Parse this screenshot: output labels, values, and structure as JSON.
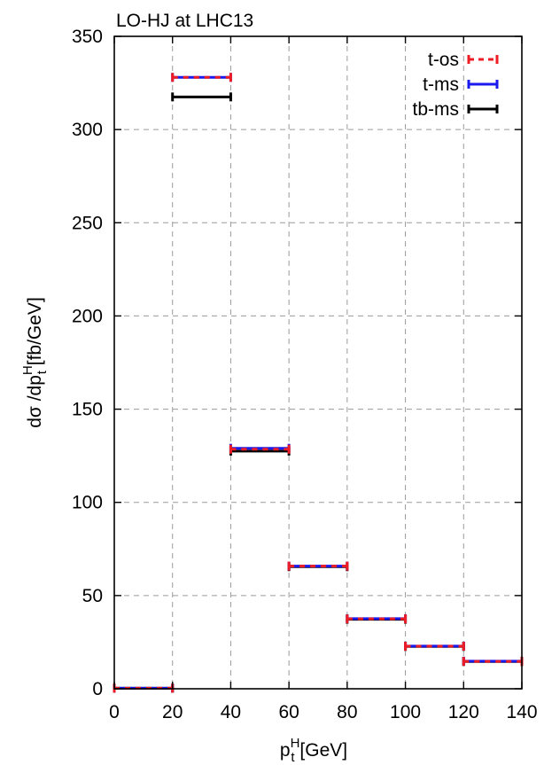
{
  "chart_data": {
    "type": "line",
    "title": "LO-HJ at LHC13",
    "xlabel": {
      "base": "p",
      "sub": "t",
      "sup": "H",
      "unit": " [GeV]"
    },
    "ylabel": {
      "prefix": "dσ /dp",
      "sub": "t",
      "sup": "H",
      "unit": " [fb/GeV]"
    },
    "xlim": [
      0,
      140
    ],
    "ylim": [
      0,
      350
    ],
    "xticks": [
      0,
      20,
      40,
      60,
      80,
      100,
      120,
      140
    ],
    "yticks": [
      0,
      50,
      100,
      150,
      200,
      250,
      300,
      350
    ],
    "grid": true,
    "legend_position": "top-right",
    "bins": [
      [
        0,
        20
      ],
      [
        20,
        40
      ],
      [
        40,
        60
      ],
      [
        60,
        80
      ],
      [
        80,
        100
      ],
      [
        100,
        120
      ],
      [
        120,
        140
      ]
    ],
    "series": [
      {
        "name": "t-os",
        "color": "#ee1c25",
        "style": "dashed",
        "values": [
          0.3,
          328.0,
          128.5,
          65.8,
          37.5,
          22.8,
          14.7
        ]
      },
      {
        "name": "t-ms",
        "color": "#1a1aee",
        "style": "solid",
        "values": [
          0.3,
          328.0,
          129.0,
          65.8,
          37.6,
          22.9,
          14.8
        ]
      },
      {
        "name": "tb-ms",
        "color": "#000000",
        "style": "solid",
        "values": [
          0.3,
          317.5,
          127.5,
          65.5,
          37.3,
          22.7,
          14.6
        ]
      }
    ]
  }
}
